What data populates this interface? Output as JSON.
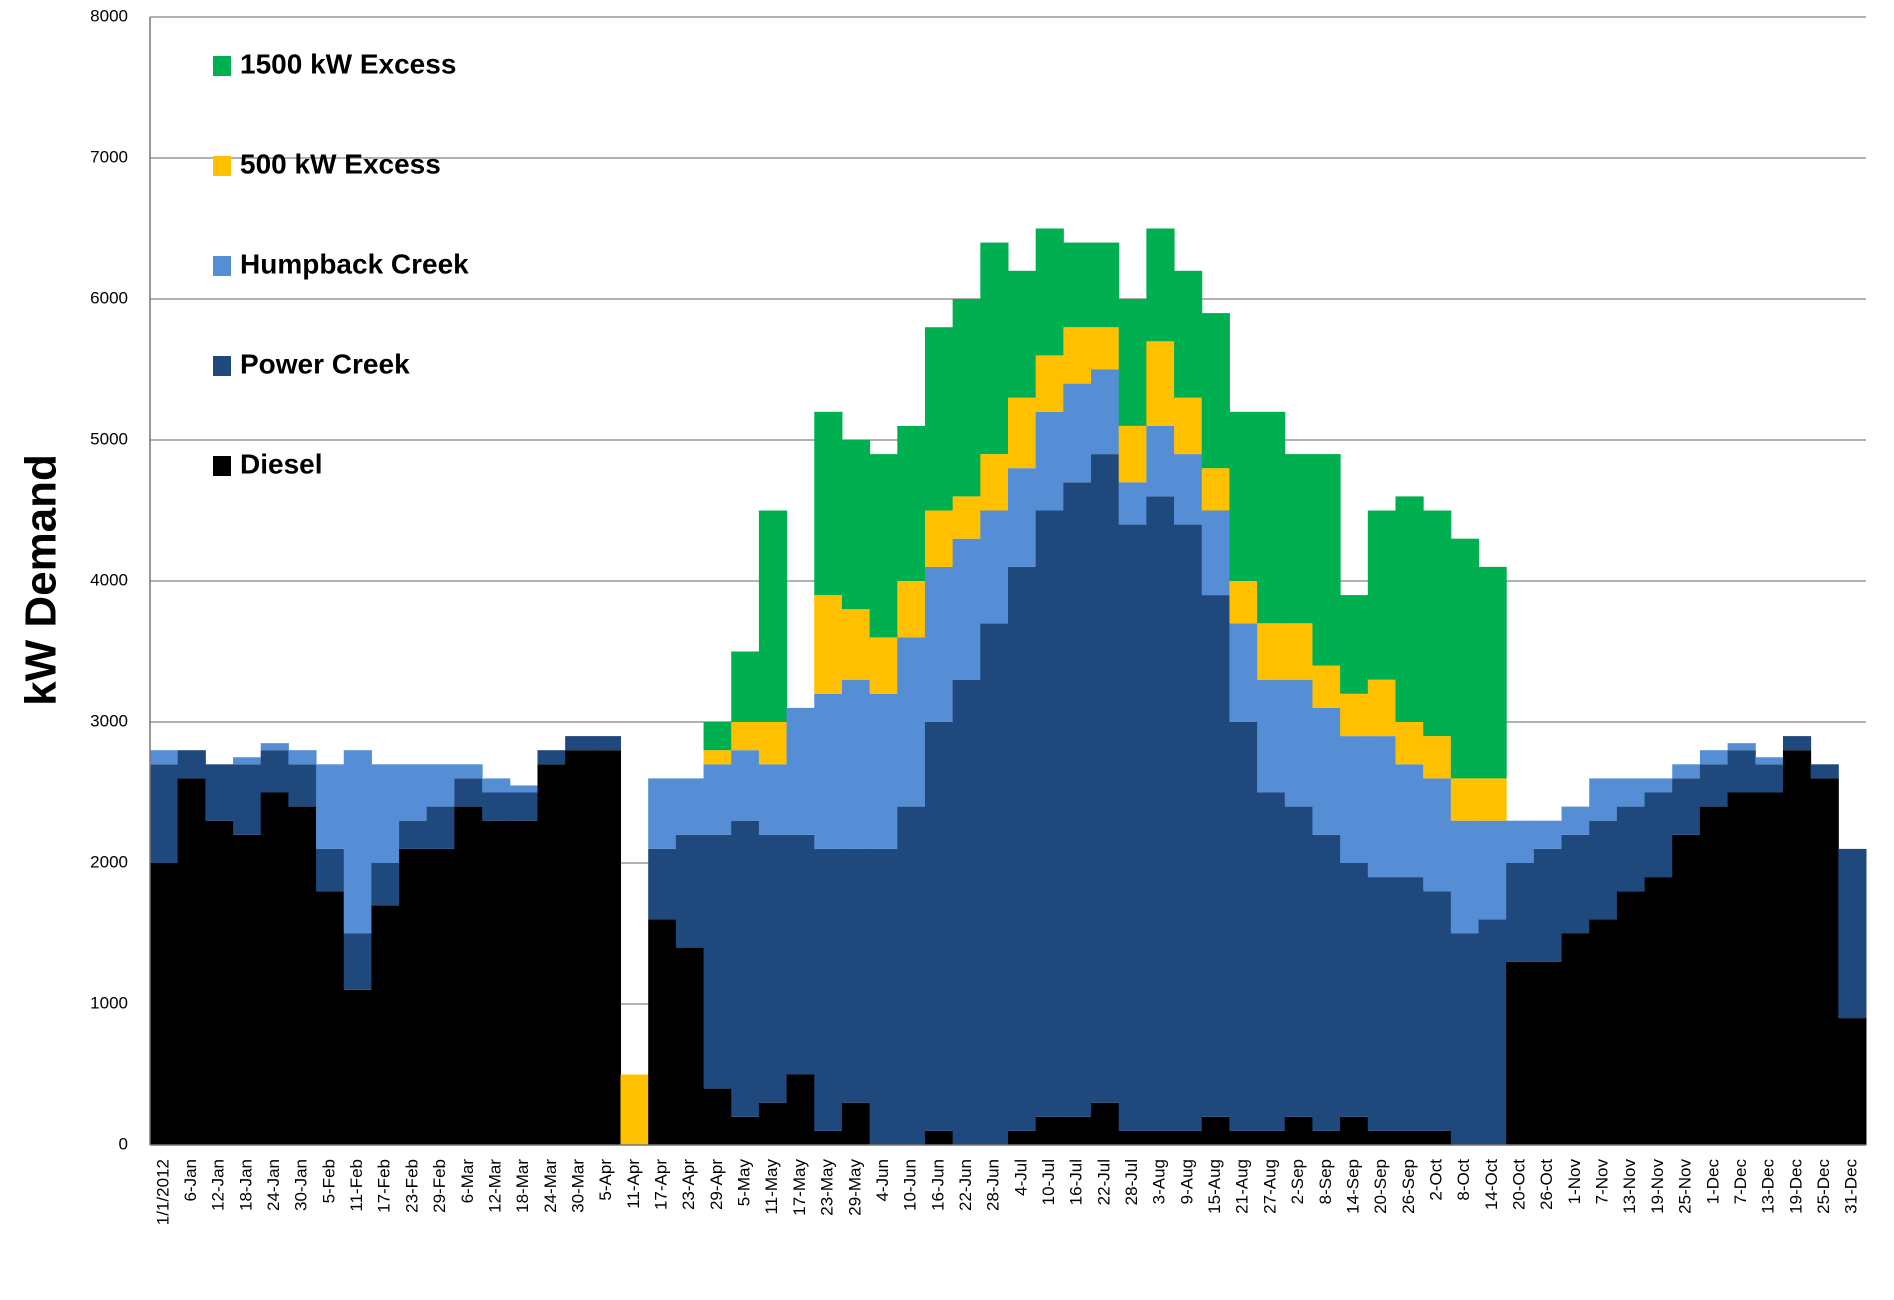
{
  "chart_data": {
    "type": "stacked_bar",
    "ylabel": "kW Demand",
    "ylim": [
      0,
      8000
    ],
    "yticks": [
      0,
      1000,
      2000,
      3000,
      4000,
      5000,
      6000,
      7000,
      8000
    ],
    "grid": true,
    "legend": "top-left",
    "categories": [
      "1/1/2012",
      "6-Jan",
      "12-Jan",
      "18-Jan",
      "24-Jan",
      "30-Jan",
      "5-Feb",
      "11-Feb",
      "17-Feb",
      "23-Feb",
      "29-Feb",
      "6-Mar",
      "12-Mar",
      "18-Mar",
      "24-Mar",
      "30-Mar",
      "5-Apr",
      "11-Apr",
      "17-Apr",
      "23-Apr",
      "29-Apr",
      "5-May",
      "11-May",
      "17-May",
      "23-May",
      "29-May",
      "4-Jun",
      "10-Jun",
      "16-Jun",
      "22-Jun",
      "28-Jun",
      "4-Jul",
      "10-Jul",
      "16-Jul",
      "22-Jul",
      "28-Jul",
      "3-Aug",
      "9-Aug",
      "15-Aug",
      "21-Aug",
      "27-Aug",
      "2-Sep",
      "8-Sep",
      "14-Sep",
      "20-Sep",
      "26-Sep",
      "2-Oct",
      "8-Oct",
      "14-Oct",
      "20-Oct",
      "26-Oct",
      "1-Nov",
      "7-Nov",
      "13-Nov",
      "19-Nov",
      "25-Nov",
      "1-Dec",
      "7-Dec",
      "13-Dec",
      "19-Dec",
      "25-Dec",
      "31-Dec"
    ],
    "series": [
      {
        "name": "1500 kW Excess",
        "color": "#00b050",
        "values": [
          0,
          0,
          0,
          0,
          0,
          0,
          0,
          0,
          0,
          0,
          0,
          0,
          0,
          0,
          0,
          0,
          0,
          0,
          0,
          0,
          200,
          500,
          1500,
          0,
          1300,
          1200,
          1300,
          1100,
          1300,
          1400,
          1500,
          900,
          900,
          600,
          600,
          900,
          800,
          900,
          1100,
          1200,
          1500,
          1200,
          1500,
          700,
          1200,
          1600,
          1600,
          1700,
          1500,
          0,
          0,
          0,
          0,
          0,
          0,
          0,
          0,
          0,
          0,
          0,
          0,
          0
        ]
      },
      {
        "name": "500 kW Excess",
        "color": "#ffc000",
        "values": [
          0,
          0,
          0,
          0,
          0,
          0,
          0,
          0,
          0,
          0,
          0,
          0,
          0,
          0,
          0,
          0,
          0,
          500,
          0,
          0,
          100,
          200,
          300,
          0,
          700,
          500,
          400,
          400,
          400,
          300,
          400,
          500,
          400,
          400,
          300,
          400,
          600,
          400,
          300,
          300,
          400,
          400,
          300,
          300,
          400,
          300,
          300,
          300,
          300,
          0,
          0,
          0,
          0,
          0,
          0,
          0,
          0,
          0,
          0,
          0,
          0,
          0
        ]
      },
      {
        "name": "Humpback Creek",
        "color": "#558ed5",
        "values": [
          100,
          0,
          0,
          50,
          50,
          100,
          600,
          1300,
          700,
          400,
          300,
          100,
          100,
          50,
          0,
          0,
          0,
          0,
          500,
          400,
          500,
          500,
          500,
          900,
          1100,
          1200,
          1100,
          1200,
          1100,
          1000,
          800,
          700,
          700,
          700,
          600,
          300,
          500,
          500,
          600,
          700,
          800,
          900,
          900,
          900,
          1000,
          800,
          800,
          800,
          700,
          300,
          200,
          200,
          300,
          200,
          100,
          100,
          100,
          50,
          50,
          0,
          0,
          0
        ]
      },
      {
        "name": "Power Creek",
        "color": "#1f497d",
        "values": [
          700,
          200,
          400,
          500,
          300,
          300,
          300,
          400,
          300,
          200,
          300,
          200,
          200,
          200,
          100,
          100,
          100,
          0,
          500,
          800,
          1800,
          2100,
          1900,
          1700,
          2000,
          1800,
          2100,
          2400,
          2900,
          3300,
          3700,
          4000,
          4300,
          4500,
          4600,
          4300,
          4500,
          4300,
          3700,
          2900,
          2400,
          2200,
          2100,
          1800,
          1800,
          1800,
          1700,
          1500,
          1600,
          700,
          800,
          700,
          700,
          600,
          600,
          400,
          300,
          300,
          200,
          100,
          100,
          1200
        ]
      },
      {
        "name": "Diesel",
        "color": "#000000",
        "values": [
          2000,
          2600,
          2300,
          2200,
          2500,
          2400,
          1800,
          1100,
          1700,
          2100,
          2100,
          2400,
          2300,
          2300,
          2700,
          2800,
          2800,
          0,
          1600,
          1400,
          400,
          200,
          300,
          500,
          100,
          300,
          0,
          0,
          100,
          0,
          0,
          100,
          200,
          200,
          300,
          100,
          100,
          100,
          200,
          100,
          100,
          200,
          100,
          200,
          100,
          100,
          100,
          0,
          0,
          1300,
          1300,
          1500,
          1600,
          1800,
          1900,
          2200,
          2400,
          2500,
          2500,
          2800,
          2600,
          900
        ]
      }
    ]
  }
}
